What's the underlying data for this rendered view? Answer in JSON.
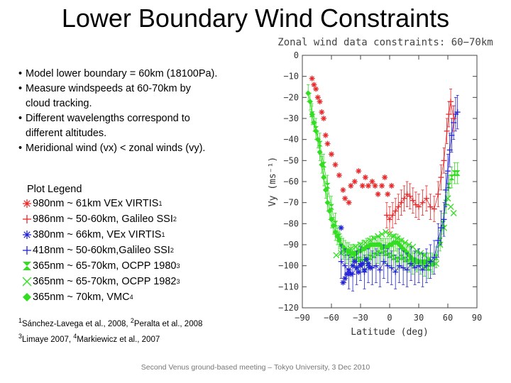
{
  "slide": {
    "title": "Lower Boundary Wind Constraints",
    "footer": "Second Venus ground-based meeting – Tokyo University, 3 Dec 2010"
  },
  "bullets": [
    {
      "line1": "Model lower boundary  = 60km (18100Pa).",
      "line2": ""
    },
    {
      "line1": "Measure windspeeds at 60-70km by",
      "line2": "cloud tracking."
    },
    {
      "line1": "Different wavelengths correspond to",
      "line2": "different altitudes."
    },
    {
      "line1": "Meridional wind (vx) < zonal winds (vy).",
      "line2": ""
    }
  ],
  "legend": {
    "title": "Plot Legend",
    "items": [
      {
        "text": "980nm ~ 61km VEx VIRTIS",
        "sup": "1",
        "color": "#e8282a",
        "marker": "asterisk"
      },
      {
        "text": "986nm ~ 50-60km, Galileo SSI",
        "sup": "2",
        "color": "#e8282a",
        "marker": "plus"
      },
      {
        "text": "380nm ~ 66km, VEx VIRTIS",
        "sup": "1",
        "color": "#2222d4",
        "marker": "asterisk"
      },
      {
        "text": "418nm ~ 50-60km,Galileo SSI",
        "sup": "2",
        "color": "#2222d4",
        "marker": "plus"
      },
      {
        "text": "365nm ~ 65-70km, OCPP 1980",
        "sup": "3",
        "color": "#33dd22",
        "marker": "hourglass"
      },
      {
        "text": "365nm ~ 65-70km, OCPP 1982",
        "sup": "3",
        "color": "#33dd22",
        "marker": "cross"
      },
      {
        "text": "365nm ~ 70km, VMC",
        "sup": "4",
        "color": "#33dd22",
        "marker": "diamond"
      }
    ]
  },
  "references": {
    "line1": {
      "s1": "1",
      "t1": "Sánchez-Lavega et al., 2008, ",
      "s2": "2",
      "t2": "Peralta et al., 2008"
    },
    "line2": {
      "s1": "3",
      "t1": "Limaye 2007, ",
      "s2": "4",
      "t2": "Markiewicz et al., 2007"
    }
  },
  "chart_data": {
    "type": "scatter",
    "title": "Zonal wind data constraints: 60−70km",
    "xlabel": "Latitude (deg)",
    "ylabel": "Vy (ms⁻¹)",
    "xlim": [
      -90,
      90
    ],
    "ylim": [
      -120,
      0
    ],
    "xticks": [
      -90,
      -60,
      -30,
      0,
      30,
      60,
      90
    ],
    "yticks": [
      0,
      -10,
      -20,
      -30,
      -40,
      -50,
      -60,
      -70,
      -80,
      -90,
      -100,
      -110,
      -120
    ],
    "xtick_labels": [
      "−90",
      "−60",
      "−30",
      "0",
      "30",
      "60",
      "90"
    ],
    "ytick_labels": [
      "0",
      "−10",
      "−20",
      "−30",
      "−40",
      "−50",
      "−60",
      "−70",
      "−80",
      "−90",
      "−100",
      "−110",
      "−120"
    ],
    "series": [
      {
        "id": "virtis-980",
        "color": "#e8282a",
        "marker": "asterisk",
        "points": [
          [
            -80,
            -11
          ],
          [
            -78,
            -14
          ],
          [
            -76,
            -16
          ],
          [
            -74,
            -20
          ],
          [
            -72,
            -22
          ],
          [
            -70,
            -27
          ],
          [
            -68,
            -30
          ],
          [
            -66,
            -38
          ],
          [
            -64,
            -42
          ],
          [
            -60,
            -47
          ],
          [
            -56,
            -52
          ],
          [
            -52,
            -57
          ],
          [
            -48,
            -64
          ],
          [
            -46,
            -68
          ],
          [
            -42,
            -70
          ],
          [
            -40,
            -62
          ],
          [
            -36,
            -60
          ],
          [
            -32,
            -55
          ],
          [
            -28,
            -62
          ],
          [
            -25,
            -58
          ],
          [
            -22,
            -62
          ],
          [
            -18,
            -60
          ],
          [
            -15,
            -62
          ],
          [
            -12,
            -66
          ],
          [
            -8,
            -62
          ],
          [
            -5,
            -58
          ],
          [
            -2,
            -66
          ],
          [
            2,
            -62
          ]
        ]
      },
      {
        "id": "ssi-986",
        "color": "#e8282a",
        "marker": "plus",
        "err": 6,
        "points": [
          [
            -3,
            -76
          ],
          [
            0,
            -78
          ],
          [
            3,
            -76
          ],
          [
            6,
            -74
          ],
          [
            9,
            -72
          ],
          [
            12,
            -70
          ],
          [
            15,
            -68
          ],
          [
            18,
            -66
          ],
          [
            21,
            -67
          ],
          [
            24,
            -69
          ],
          [
            27,
            -71
          ],
          [
            30,
            -72
          ],
          [
            34,
            -70
          ],
          [
            38,
            -68
          ],
          [
            42,
            -72
          ],
          [
            46,
            -73
          ],
          [
            50,
            -66
          ],
          [
            53,
            -58
          ],
          [
            56,
            -50
          ],
          [
            59,
            -36
          ],
          [
            61,
            -28
          ],
          [
            63,
            -22
          ],
          [
            66,
            -30
          ]
        ]
      },
      {
        "id": "virtis-380",
        "color": "#2222d4",
        "marker": "asterisk",
        "points": [
          [
            -50,
            -82
          ],
          [
            -48,
            -108
          ],
          [
            -46,
            -106
          ],
          [
            -44,
            -104
          ],
          [
            -42,
            -102
          ],
          [
            -40,
            -104
          ],
          [
            -38,
            -100
          ],
          [
            -36,
            -98
          ],
          [
            -34,
            -101
          ],
          [
            -32,
            -103
          ],
          [
            -30,
            -100
          ],
          [
            -28,
            -99
          ],
          [
            -26,
            -102
          ],
          [
            -24,
            -97
          ],
          [
            -22,
            -99
          ],
          [
            -20,
            -101
          ]
        ]
      },
      {
        "id": "ssi-418",
        "color": "#2222d4",
        "marker": "plus",
        "err": 8,
        "points": [
          [
            -50,
            -98
          ],
          [
            -46,
            -100
          ],
          [
            -42,
            -103
          ],
          [
            -38,
            -104
          ],
          [
            -34,
            -101
          ],
          [
            -30,
            -99
          ],
          [
            -26,
            -103
          ],
          [
            -22,
            -100
          ],
          [
            -18,
            -101
          ],
          [
            -14,
            -100
          ],
          [
            -10,
            -102
          ],
          [
            -6,
            -98
          ],
          [
            -2,
            -100
          ],
          [
            2,
            -101
          ],
          [
            6,
            -103
          ],
          [
            10,
            -100
          ],
          [
            14,
            -101
          ],
          [
            18,
            -102
          ],
          [
            22,
            -99
          ],
          [
            26,
            -101
          ],
          [
            30,
            -100
          ],
          [
            34,
            -102
          ],
          [
            38,
            -100
          ],
          [
            42,
            -98
          ],
          [
            46,
            -96
          ],
          [
            50,
            -88
          ],
          [
            53,
            -82
          ],
          [
            56,
            -78
          ],
          [
            58,
            -64
          ],
          [
            60,
            -55
          ],
          [
            62,
            -45
          ],
          [
            64,
            -38
          ],
          [
            66,
            -32
          ],
          [
            68,
            -28
          ],
          [
            70,
            -27
          ]
        ]
      },
      {
        "id": "ocpp-1980",
        "color": "#33dd22",
        "marker": "hourglass",
        "err": 5,
        "points": [
          [
            -80,
            -28
          ],
          [
            -76,
            -35
          ],
          [
            -72,
            -42
          ],
          [
            -68,
            -52
          ],
          [
            -64,
            -62
          ],
          [
            -60,
            -72
          ],
          [
            -56,
            -80
          ],
          [
            -52,
            -86
          ],
          [
            -48,
            -92
          ],
          [
            -44,
            -94
          ],
          [
            -40,
            -95
          ],
          [
            -36,
            -96
          ],
          [
            -32,
            -97
          ],
          [
            -28,
            -98
          ],
          [
            -24,
            -97
          ],
          [
            -20,
            -96
          ],
          [
            -16,
            -95
          ],
          [
            -12,
            -94
          ],
          [
            -8,
            -93
          ],
          [
            -4,
            -94
          ],
          [
            0,
            -95
          ],
          [
            4,
            -96
          ],
          [
            8,
            -97
          ],
          [
            12,
            -96
          ],
          [
            16,
            -97
          ],
          [
            20,
            -98
          ],
          [
            24,
            -99
          ],
          [
            28,
            -98
          ],
          [
            32,
            -99
          ],
          [
            36,
            -100
          ],
          [
            40,
            -101
          ],
          [
            44,
            -99
          ],
          [
            48,
            -96
          ],
          [
            52,
            -88
          ],
          [
            55,
            -80
          ],
          [
            58,
            -70
          ],
          [
            61,
            -62
          ],
          [
            64,
            -58
          ],
          [
            67,
            -56
          ],
          [
            70,
            -56
          ]
        ]
      },
      {
        "id": "ocpp-1982",
        "color": "#33dd22",
        "marker": "cross",
        "points": [
          [
            -55,
            -95
          ],
          [
            -50,
            -94
          ],
          [
            -45,
            -93
          ],
          [
            -40,
            -92
          ],
          [
            -35,
            -91
          ],
          [
            -30,
            -90
          ],
          [
            -25,
            -89
          ],
          [
            -20,
            -88
          ],
          [
            -16,
            -87
          ],
          [
            -12,
            -86
          ],
          [
            -8,
            -85
          ],
          [
            -4,
            -84
          ],
          [
            0,
            -85
          ],
          [
            4,
            -86
          ],
          [
            8,
            -87
          ],
          [
            12,
            -88
          ],
          [
            16,
            -89
          ],
          [
            20,
            -90
          ],
          [
            24,
            -91
          ],
          [
            28,
            -93
          ],
          [
            32,
            -94
          ],
          [
            36,
            -95
          ],
          [
            40,
            -97
          ],
          [
            44,
            -98
          ],
          [
            48,
            -99
          ],
          [
            52,
            -90
          ],
          [
            56,
            -82
          ],
          [
            60,
            -68
          ],
          [
            63,
            -72
          ],
          [
            66,
            -75
          ]
        ]
      },
      {
        "id": "vmc",
        "color": "#33dd22",
        "marker": "diamond",
        "err": 4,
        "points": [
          [
            -84,
            -18
          ],
          [
            -82,
            -22
          ],
          [
            -80,
            -28
          ],
          [
            -78,
            -32
          ],
          [
            -76,
            -36
          ],
          [
            -74,
            -40
          ],
          [
            -72,
            -46
          ],
          [
            -70,
            -52
          ],
          [
            -68,
            -58
          ],
          [
            -66,
            -64
          ],
          [
            -64,
            -70
          ],
          [
            -62,
            -74
          ],
          [
            -60,
            -78
          ],
          [
            -58,
            -81
          ],
          [
            -56,
            -84
          ],
          [
            -54,
            -86
          ],
          [
            -52,
            -88
          ],
          [
            -50,
            -90
          ],
          [
            -48,
            -91
          ],
          [
            -46,
            -92
          ],
          [
            -44,
            -93
          ],
          [
            -42,
            -93
          ],
          [
            -40,
            -94
          ],
          [
            -38,
            -94
          ],
          [
            -36,
            -94
          ],
          [
            -34,
            -94
          ],
          [
            -32,
            -93
          ],
          [
            -30,
            -93
          ],
          [
            -28,
            -92
          ],
          [
            -26,
            -92
          ],
          [
            -24,
            -91
          ],
          [
            -22,
            -91
          ],
          [
            -20,
            -90
          ],
          [
            -18,
            -90
          ],
          [
            -16,
            -90
          ],
          [
            -14,
            -90
          ],
          [
            -12,
            -90
          ],
          [
            -10,
            -90
          ],
          [
            -8,
            -91
          ],
          [
            -6,
            -91
          ],
          [
            -4,
            -91
          ],
          [
            -2,
            -91
          ],
          [
            0,
            -90
          ],
          [
            2,
            -90
          ],
          [
            4,
            -89
          ],
          [
            6,
            -89
          ],
          [
            8,
            -89
          ],
          [
            10,
            -90
          ],
          [
            12,
            -91
          ],
          [
            14,
            -92
          ],
          [
            16,
            -93
          ],
          [
            18,
            -94
          ],
          [
            20,
            -95
          ],
          [
            22,
            -96
          ],
          [
            24,
            -97
          ],
          [
            26,
            -97
          ],
          [
            28,
            -98
          ],
          [
            30,
            -98
          ],
          [
            32,
            -98
          ],
          [
            34,
            -98
          ],
          [
            36,
            -98
          ],
          [
            38,
            -98
          ],
          [
            40,
            -98
          ],
          [
            42,
            -98
          ],
          [
            44,
            -99
          ]
        ]
      }
    ]
  }
}
